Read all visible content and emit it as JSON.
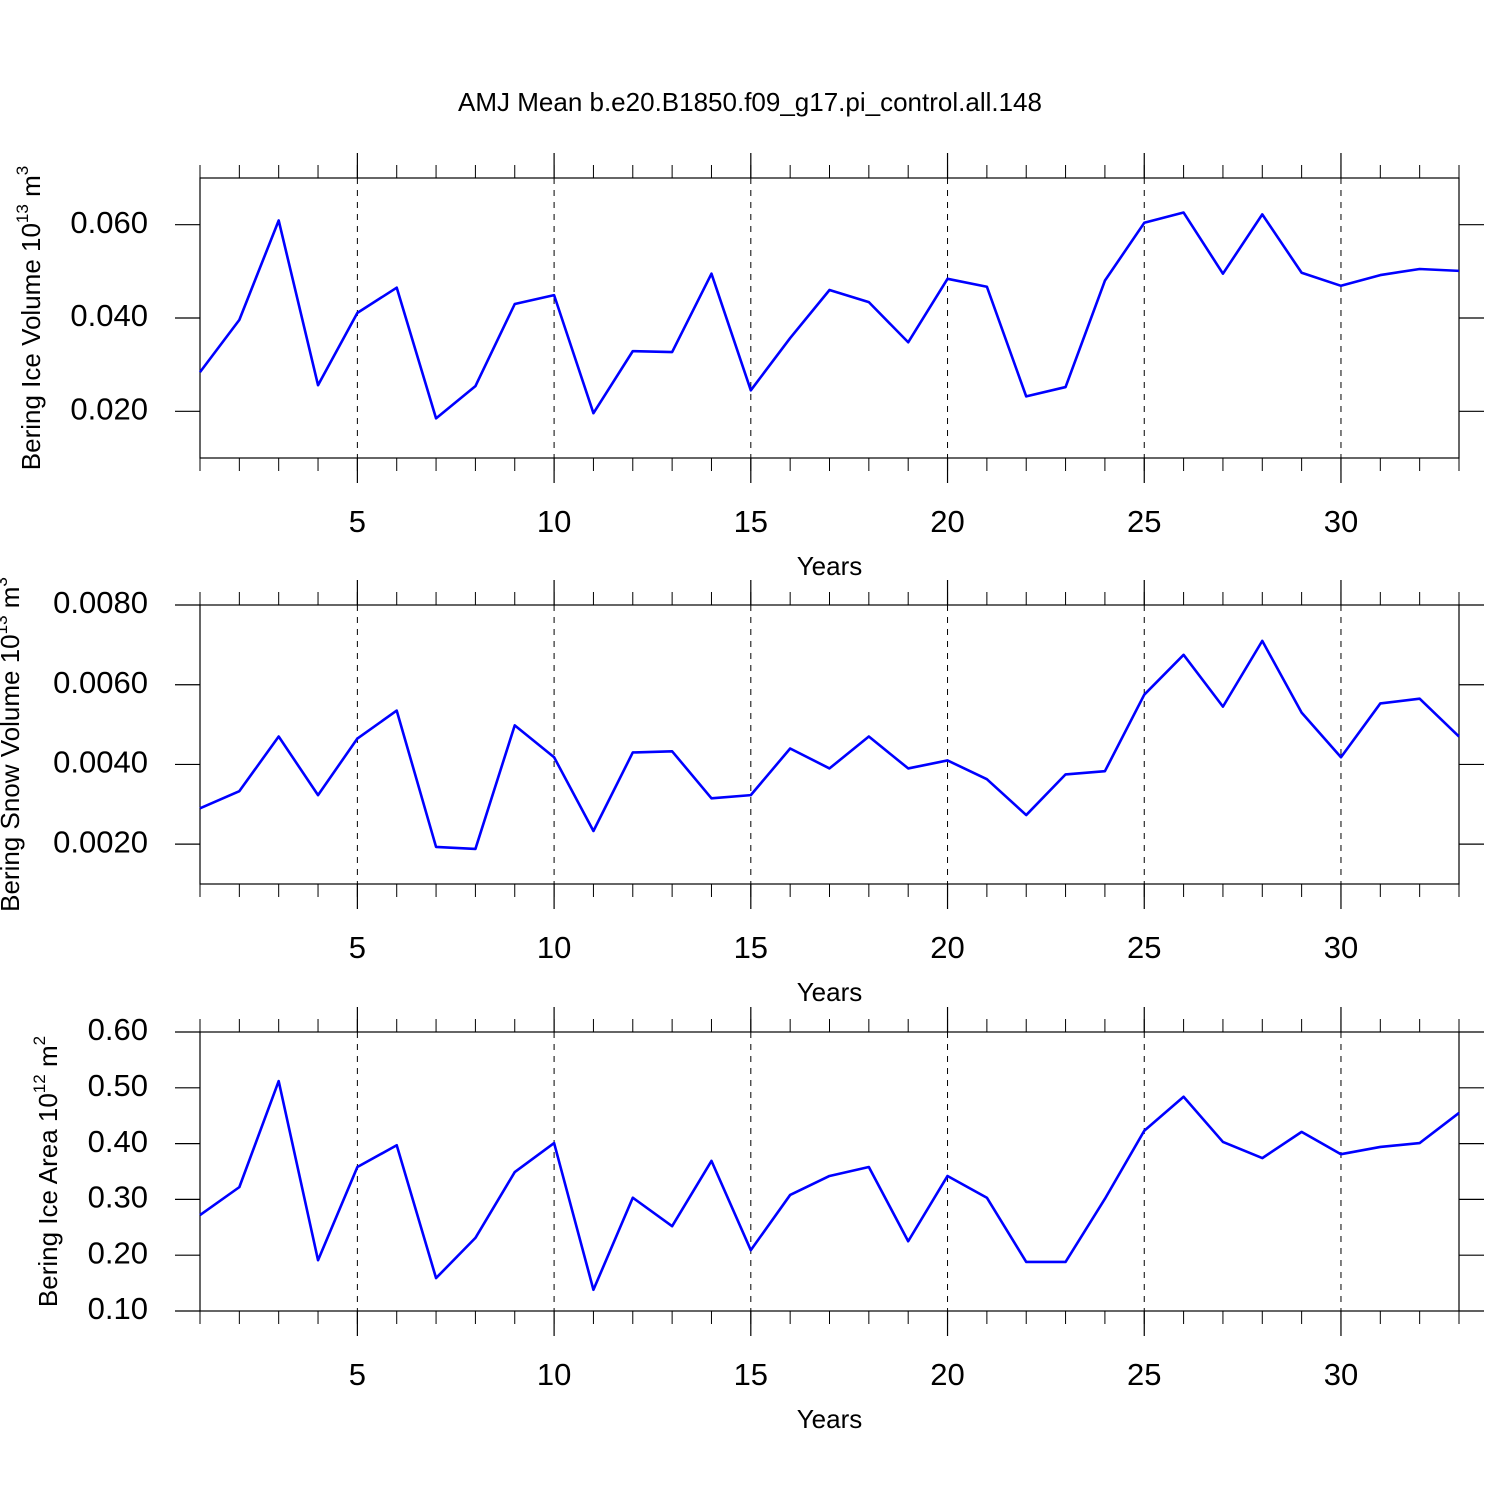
{
  "chart_data": [
    {
      "type": "line",
      "title": "AMJ Mean b.e20.B1850.f09_g17.pi_control.all.148",
      "ylabel": [
        "Bering Ice Volume 10",
        "13",
        " m",
        "3"
      ],
      "xlabel": "Years",
      "x": [
        1,
        2,
        3,
        4,
        5,
        6,
        7,
        8,
        9,
        10,
        11,
        12,
        13,
        14,
        15,
        16,
        17,
        18,
        19,
        20,
        21,
        22,
        23,
        24,
        25,
        26,
        27,
        28,
        29,
        30,
        31,
        32,
        33
      ],
      "xlim": [
        1,
        33
      ],
      "xticks": [
        5,
        10,
        15,
        20,
        25,
        30
      ],
      "ylim": [
        0.01,
        0.07
      ],
      "yticks": [
        {
          "value": 0.02,
          "label": "0.020"
        },
        {
          "value": 0.04,
          "label": "0.040"
        },
        {
          "value": 0.06,
          "label": "0.060"
        }
      ],
      "grid": true,
      "series": [
        {
          "color": "#0000ff",
          "values": [
            0.0284,
            0.0396,
            0.0609,
            0.0256,
            0.0411,
            0.0465,
            0.0185,
            0.0254,
            0.043,
            0.0449,
            0.0196,
            0.0329,
            0.0327,
            0.0495,
            0.0245,
            0.0357,
            0.046,
            0.0434,
            0.0348,
            0.0484,
            0.0467,
            0.0232,
            0.0252,
            0.048,
            0.0604,
            0.0626,
            0.0495,
            0.0622,
            0.0497,
            0.0469,
            0.0492,
            0.0505,
            0.0501
          ]
        }
      ]
    },
    {
      "type": "line",
      "ylabel": [
        "Bering Snow Volume 10",
        "13",
        " m",
        "3"
      ],
      "xlabel": "Years",
      "x": [
        1,
        2,
        3,
        4,
        5,
        6,
        7,
        8,
        9,
        10,
        11,
        12,
        13,
        14,
        15,
        16,
        17,
        18,
        19,
        20,
        21,
        22,
        23,
        24,
        25,
        26,
        27,
        28,
        29,
        30,
        31,
        32,
        33
      ],
      "xlim": [
        1,
        33
      ],
      "xticks": [
        5,
        10,
        15,
        20,
        25,
        30
      ],
      "ylim": [
        0.001,
        0.008
      ],
      "yticks": [
        {
          "value": 0.002,
          "label": "0.0020"
        },
        {
          "value": 0.004,
          "label": "0.0040"
        },
        {
          "value": 0.006,
          "label": "0.0060"
        },
        {
          "value": 0.008,
          "label": "0.0080"
        }
      ],
      "grid": true,
      "series": [
        {
          "color": "#0000ff",
          "values": [
            0.0029,
            0.00333,
            0.0047,
            0.00323,
            0.00465,
            0.00535,
            0.00193,
            0.00188,
            0.00498,
            0.00418,
            0.00233,
            0.0043,
            0.00433,
            0.00315,
            0.00323,
            0.0044,
            0.0039,
            0.0047,
            0.0039,
            0.0041,
            0.00363,
            0.00273,
            0.00375,
            0.00383,
            0.00575,
            0.00675,
            0.00545,
            0.0071,
            0.0053,
            0.00418,
            0.00553,
            0.00565,
            0.0047
          ]
        }
      ]
    },
    {
      "type": "line",
      "ylabel": [
        "Bering Ice Area 10",
        "12",
        " m",
        "2"
      ],
      "xlabel": "Years",
      "x": [
        1,
        2,
        3,
        4,
        5,
        6,
        7,
        8,
        9,
        10,
        11,
        12,
        13,
        14,
        15,
        16,
        17,
        18,
        19,
        20,
        21,
        22,
        23,
        24,
        25,
        26,
        27,
        28,
        29,
        30,
        31,
        32,
        33
      ],
      "xlim": [
        1,
        33
      ],
      "xticks": [
        5,
        10,
        15,
        20,
        25,
        30
      ],
      "ylim": [
        0.1,
        0.6
      ],
      "yticks": [
        {
          "value": 0.1,
          "label": "0.10"
        },
        {
          "value": 0.2,
          "label": "0.20"
        },
        {
          "value": 0.3,
          "label": "0.30"
        },
        {
          "value": 0.4,
          "label": "0.40"
        },
        {
          "value": 0.5,
          "label": "0.50"
        },
        {
          "value": 0.6,
          "label": "0.60"
        }
      ],
      "grid": true,
      "series": [
        {
          "color": "#0000ff",
          "values": [
            0.272,
            0.322,
            0.512,
            0.191,
            0.358,
            0.397,
            0.159,
            0.231,
            0.349,
            0.401,
            0.138,
            0.303,
            0.252,
            0.369,
            0.209,
            0.308,
            0.342,
            0.358,
            0.225,
            0.342,
            0.303,
            0.188,
            0.188,
            0.301,
            0.423,
            0.484,
            0.403,
            0.374,
            0.421,
            0.381,
            0.394,
            0.401,
            0.455
          ]
        }
      ]
    }
  ]
}
